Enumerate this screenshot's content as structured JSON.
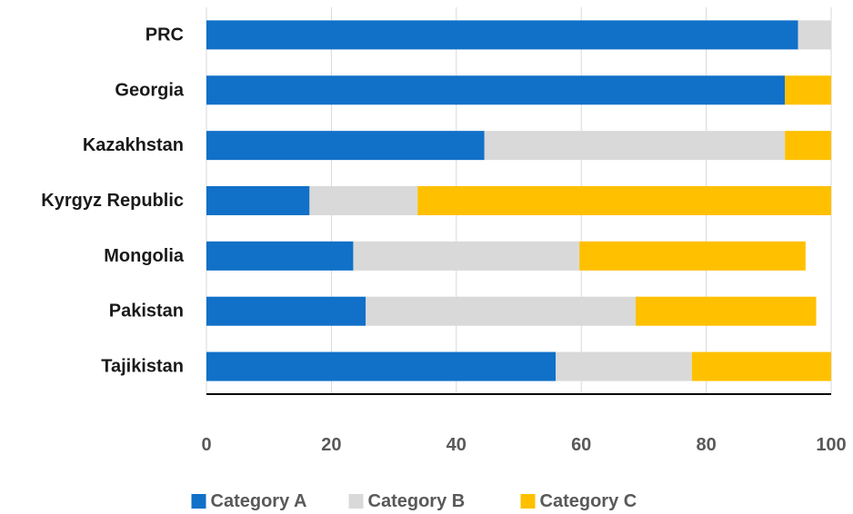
{
  "chart_data": {
    "type": "bar",
    "orientation": "horizontal",
    "stacked": true,
    "title": "",
    "xlabel": "",
    "ylabel": "",
    "xlim": [
      0,
      100
    ],
    "xticks": [
      "0",
      "20",
      "40",
      "60",
      "80",
      "100"
    ],
    "grid": true,
    "legend_position": "bottom",
    "categories": [
      "PRC",
      "Georgia",
      "Kazakhstan",
      "Kyrgyz Republic",
      "Mongolia",
      "Pakistan",
      "Tajikistan"
    ],
    "series": [
      {
        "name": "Category A",
        "color": "#1170c8",
        "values": [
          94.7,
          92.6,
          44.5,
          16.5,
          23.5,
          25.5,
          55.9
        ]
      },
      {
        "name": "Category B",
        "color": "#d9d9d9",
        "values": [
          5.3,
          0,
          48.1,
          17.3,
          36.2,
          43.2,
          21.8
        ]
      },
      {
        "name": "Category C",
        "color": "#ffc000",
        "values": [
          0,
          7.4,
          7.4,
          66.2,
          36.2,
          28.9,
          22.3
        ]
      }
    ]
  }
}
